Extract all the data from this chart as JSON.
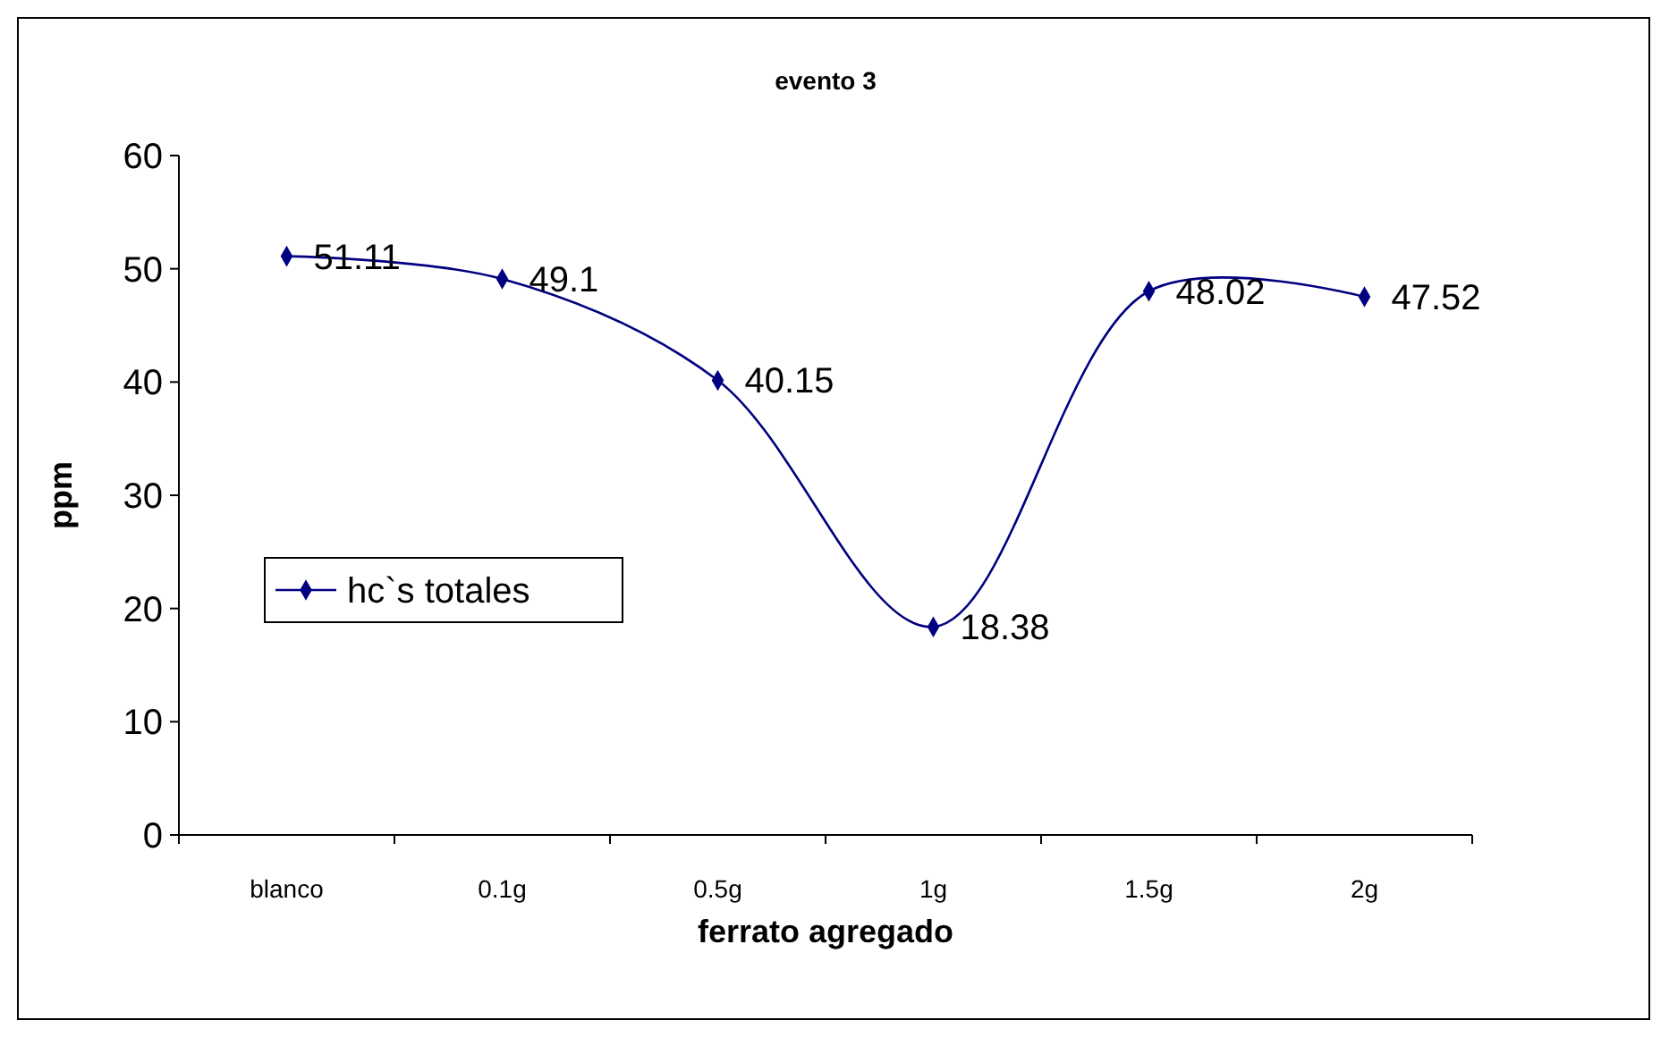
{
  "chart_data": {
    "type": "line",
    "title": "evento 3",
    "xlabel": "ferrato agregado",
    "ylabel": "ppm",
    "categories": [
      "blanco",
      "0.1g",
      "0.5g",
      "1g",
      "1.5g",
      "2g"
    ],
    "series": [
      {
        "name": "hc`s totales",
        "color": "#000080",
        "values": [
          51.11,
          49.1,
          40.15,
          18.38,
          48.02,
          47.52
        ]
      }
    ],
    "ylim": [
      0,
      60
    ],
    "yticks": [
      0,
      10,
      20,
      30,
      40,
      50,
      60
    ],
    "grid": false,
    "legend": "left",
    "marker": "diamond",
    "line_style": "solid",
    "data_labels": true
  }
}
